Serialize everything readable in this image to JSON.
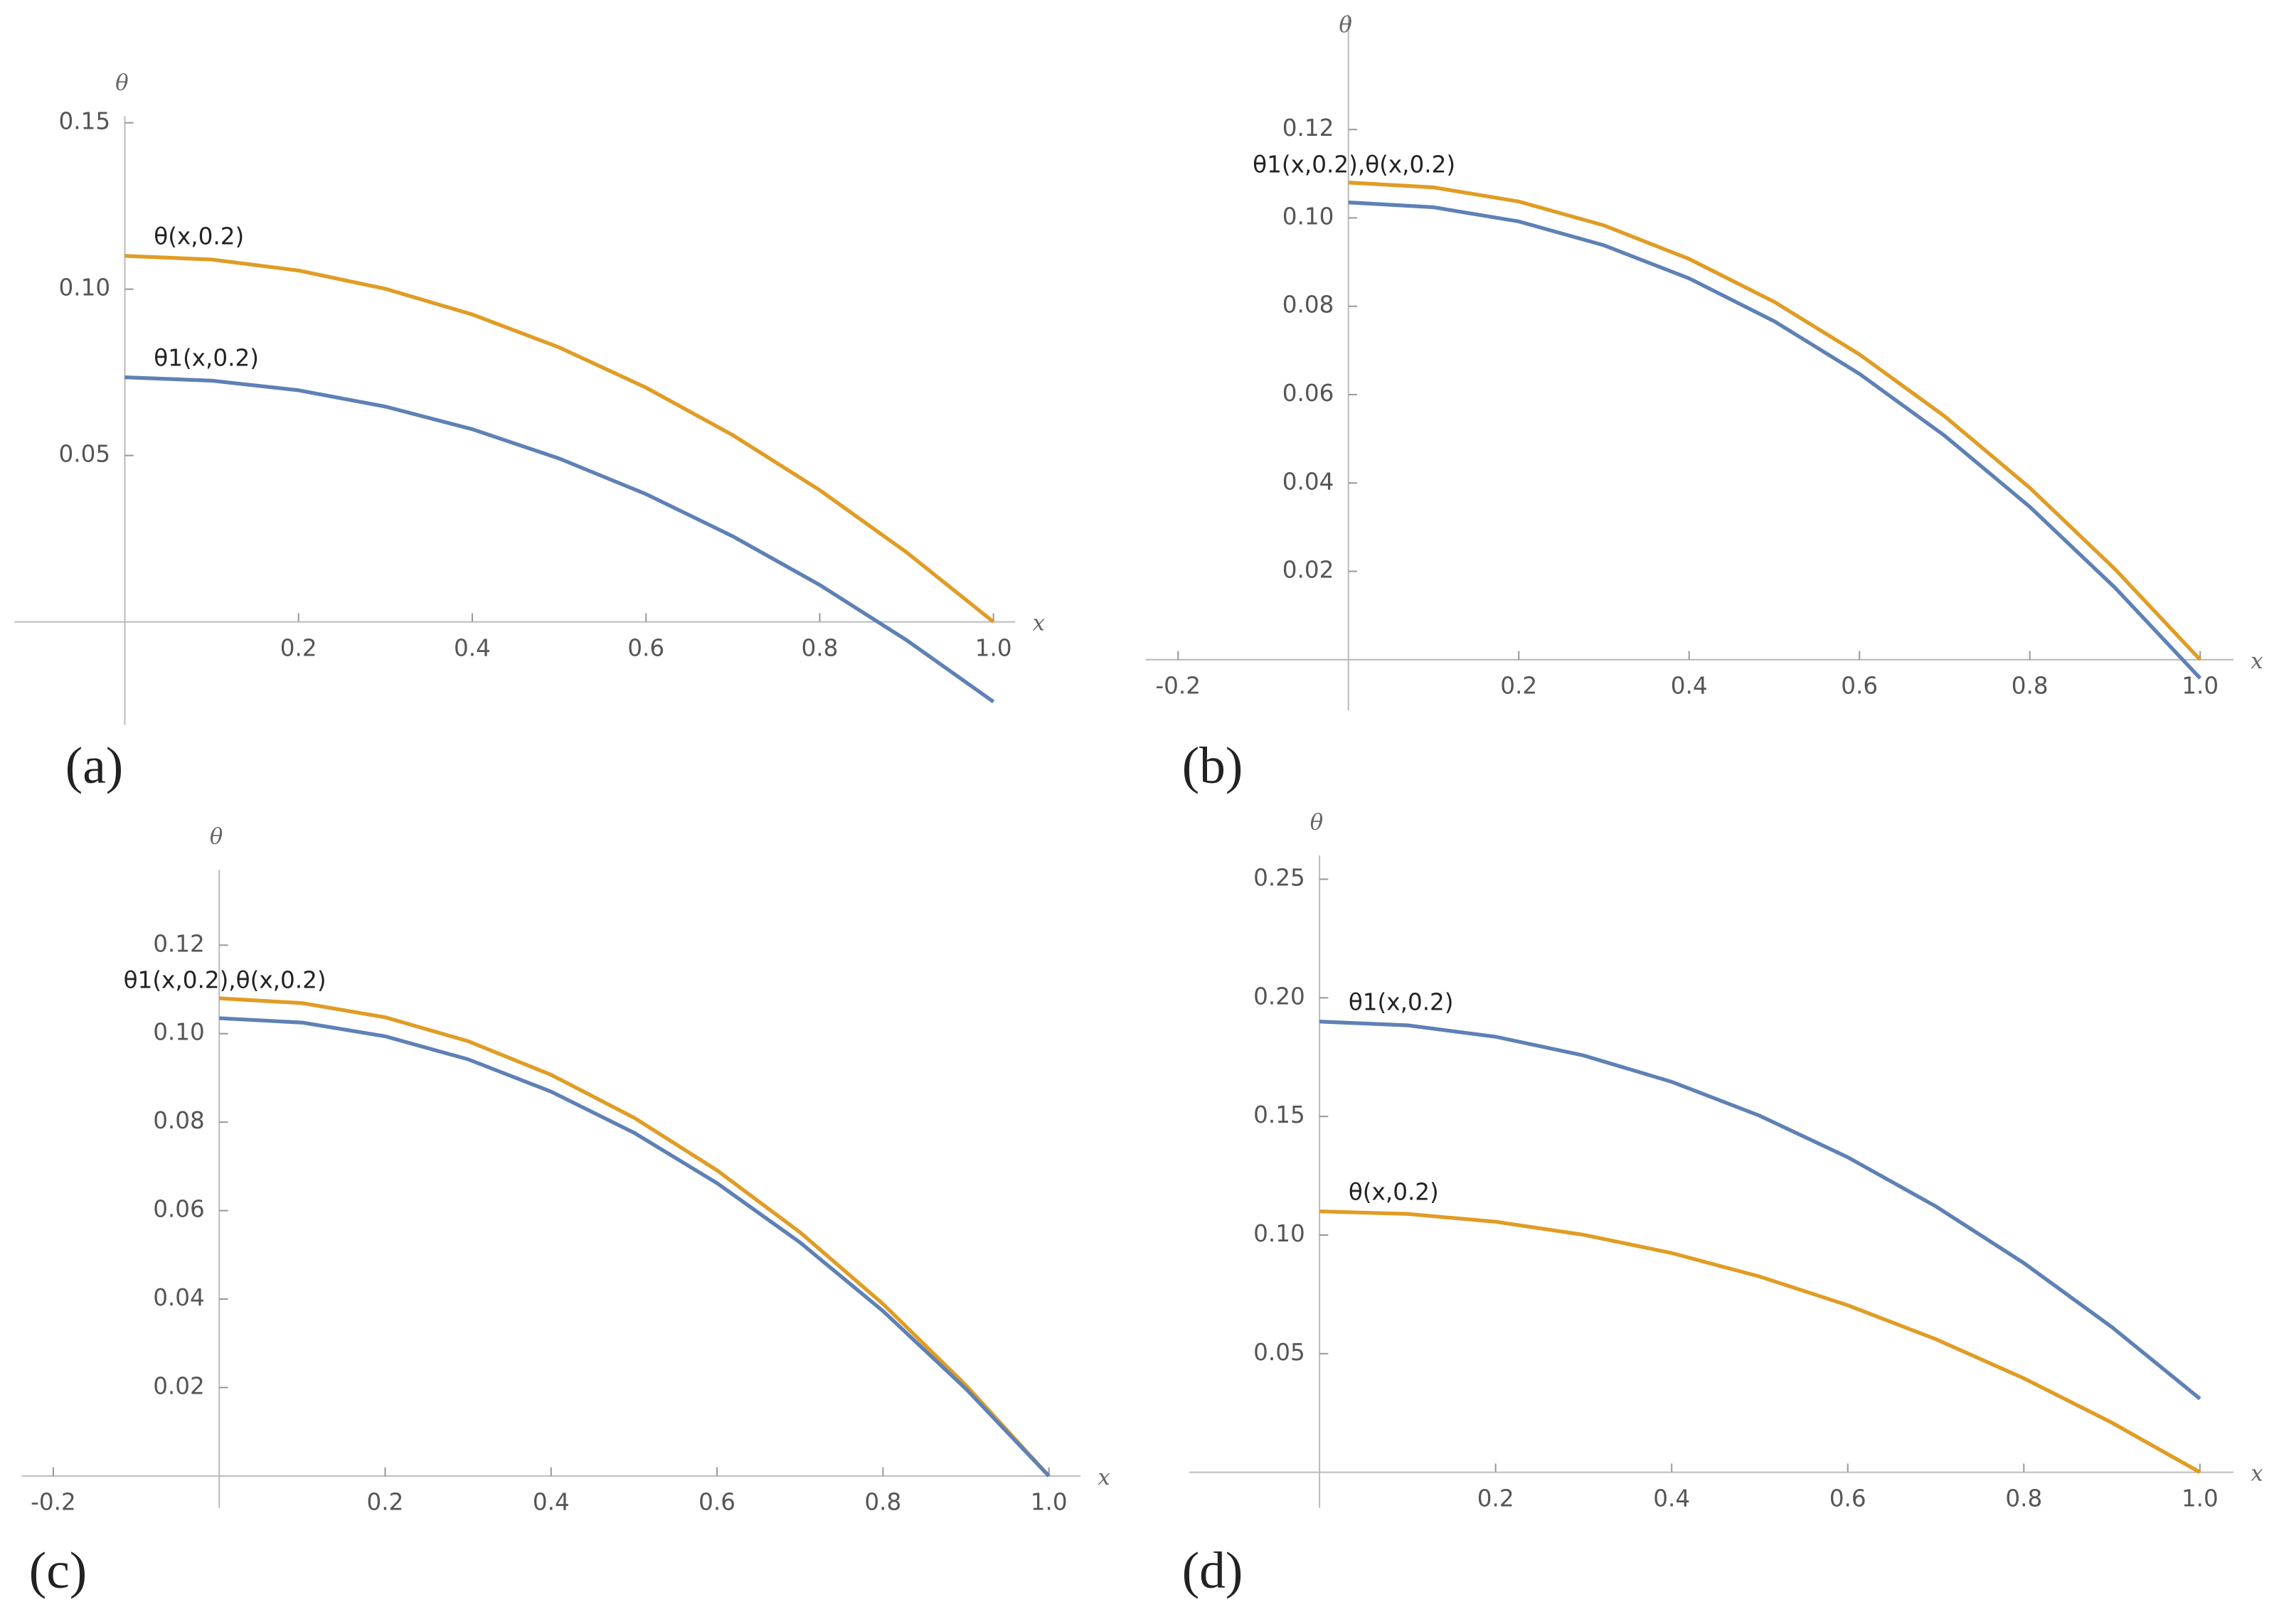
{
  "chart_data": [
    {
      "type": "line",
      "panel_label": "(a)",
      "x_label": "x",
      "y_label": "θ",
      "x": [
        0,
        0.1,
        0.2,
        0.3,
        0.4,
        0.5,
        0.6,
        0.7,
        0.8,
        0.9,
        1.0
      ],
      "series": [
        {
          "name": "θ(x,0.2)",
          "color": "#e19c24",
          "values": [
            0.11,
            0.1089,
            0.1056,
            0.1001,
            0.0924,
            0.0825,
            0.0704,
            0.0561,
            0.0396,
            0.0209,
            0
          ]
        },
        {
          "name": "θ1(x,0.2)",
          "color": "#5e81b5",
          "values": [
            0.0735,
            0.0725,
            0.0696,
            0.0647,
            0.0579,
            0.0491,
            0.0384,
            0.0257,
            0.0111,
            -0.0055,
            -0.024
          ]
        }
      ],
      "xlim": [
        -0.127,
        1.025
      ],
      "ylim": [
        -0.031,
        0.152
      ],
      "xticks": [
        0.2,
        0.4,
        0.6,
        0.8,
        {
          "value": 1.0,
          "label": "1.0"
        }
      ],
      "yticks": [
        0.05,
        {
          "value": 0.1,
          "label": "0.10"
        },
        0.15
      ]
    },
    {
      "type": "line",
      "panel_label": "(b)",
      "x_label": "x",
      "y_label": "θ",
      "annotation": "θ1(x,0.2),θ(x,0.2)",
      "x": [
        0,
        0.1,
        0.2,
        0.3,
        0.4,
        0.5,
        0.6,
        0.7,
        0.8,
        0.9,
        1.0
      ],
      "series": [
        {
          "color": "#e19c24",
          "values": [
            0.108,
            0.1069,
            0.1037,
            0.0983,
            0.0907,
            0.081,
            0.0691,
            0.0551,
            0.0389,
            0.0205,
            0
          ]
        },
        {
          "color": "#5e81b5",
          "values": [
            0.1035,
            0.1024,
            0.0992,
            0.0938,
            0.0863,
            0.0766,
            0.0647,
            0.0507,
            0.0346,
            0.0163,
            -0.0042
          ]
        }
      ],
      "xlim": [
        -0.238,
        1.039
      ],
      "ylim": [
        -0.0115,
        0.146
      ],
      "xticks": [
        -0.2,
        0.2,
        0.4,
        0.6,
        0.8,
        {
          "value": 1.0,
          "label": "1.0"
        }
      ],
      "yticks": [
        0.02,
        0.04,
        0.06,
        0.08,
        {
          "value": 0.1,
          "label": "0.10"
        },
        0.12
      ]
    },
    {
      "type": "line",
      "panel_label": "(c)",
      "x_label": "x",
      "y_label": "θ",
      "annotation": "θ1(x,0.2),θ(x,0.2)",
      "x": [
        0,
        0.1,
        0.2,
        0.3,
        0.4,
        0.5,
        0.6,
        0.7,
        0.8,
        0.9,
        1.0
      ],
      "series": [
        {
          "color": "#e19c24",
          "values": [
            0.108,
            0.1069,
            0.1037,
            0.0983,
            0.0907,
            0.081,
            0.0691,
            0.0551,
            0.0389,
            0.0205,
            0
          ]
        },
        {
          "color": "#5e81b5",
          "values": [
            0.1035,
            0.1025,
            0.0994,
            0.0942,
            0.0869,
            0.0776,
            0.0662,
            0.0528,
            0.0373,
            0.0197,
            0
          ]
        }
      ],
      "xlim": [
        -0.238,
        1.038
      ],
      "ylim": [
        -0.0072,
        0.137
      ],
      "xticks": [
        -0.2,
        0.2,
        0.4,
        0.6,
        0.8,
        {
          "value": 1.0,
          "label": "1.0"
        }
      ],
      "yticks": [
        0.02,
        0.04,
        0.06,
        0.08,
        {
          "value": 0.1,
          "label": "0.10"
        },
        0.12
      ]
    },
    {
      "type": "line",
      "panel_label": "(d)",
      "x_label": "x",
      "y_label": "θ",
      "x": [
        0,
        0.1,
        0.2,
        0.3,
        0.4,
        0.5,
        0.6,
        0.7,
        0.8,
        0.9,
        1.0
      ],
      "series": [
        {
          "name": "θ1(x,0.2)",
          "color": "#5e81b5",
          "values": [
            0.19,
            0.1884,
            0.1836,
            0.1757,
            0.1646,
            0.1503,
            0.1328,
            0.1121,
            0.0882,
            0.0612,
            0.031
          ]
        },
        {
          "name": "θ(x,0.2)",
          "color": "#e19c24",
          "values": [
            0.11,
            0.1089,
            0.1056,
            0.1001,
            0.0924,
            0.0825,
            0.0704,
            0.0561,
            0.0396,
            0.0209,
            0
          ]
        }
      ],
      "xlim": [
        -0.148,
        1.038
      ],
      "ylim": [
        -0.015,
        0.26
      ],
      "xticks": [
        0.2,
        0.4,
        0.6,
        0.8,
        {
          "value": 1.0,
          "label": "1.0"
        }
      ],
      "yticks": [
        0.05,
        {
          "value": 0.1,
          "label": "0.10"
        },
        0.15,
        {
          "value": 0.2,
          "label": "0.20"
        },
        0.25
      ]
    }
  ]
}
